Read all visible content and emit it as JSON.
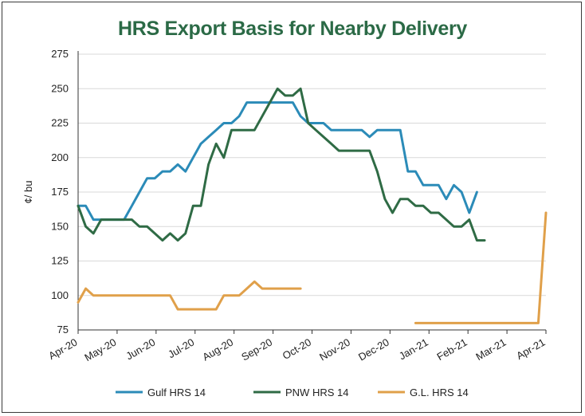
{
  "chart_data": {
    "type": "line",
    "title": "HRS Export Basis for Nearby Delivery",
    "ylabel": "¢/ bu",
    "xlabel": "",
    "ylim": [
      75,
      275
    ],
    "yticks": [
      75,
      100,
      125,
      150,
      175,
      200,
      225,
      250,
      275
    ],
    "xticks": [
      "Apr-20",
      "May-20",
      "Jun-20",
      "Jul-20",
      "Aug-20",
      "Sep-20",
      "Oct-20",
      "Nov-20",
      "Dec-20",
      "Jan-21",
      "Feb-21",
      "Mar-21",
      "Apr-21"
    ],
    "grid": "horizontal",
    "legend": "bottom",
    "series": [
      {
        "name": "Gulf HRS 14",
        "color": "#2b8bb8",
        "points": [
          [
            0,
            165
          ],
          [
            0.25,
            165
          ],
          [
            0.5,
            155
          ],
          [
            0.75,
            155
          ],
          [
            1.0,
            155
          ],
          [
            1.25,
            155
          ],
          [
            1.5,
            155
          ],
          [
            1.75,
            165
          ],
          [
            2.0,
            175
          ],
          [
            2.25,
            185
          ],
          [
            2.5,
            185
          ],
          [
            2.75,
            190
          ],
          [
            3.0,
            190
          ],
          [
            3.25,
            195
          ],
          [
            3.5,
            190
          ],
          [
            3.75,
            200
          ],
          [
            4.0,
            210
          ],
          [
            4.25,
            215
          ],
          [
            4.5,
            220
          ],
          [
            4.75,
            225
          ],
          [
            5.0,
            225
          ],
          [
            5.25,
            230
          ],
          [
            5.5,
            240
          ],
          [
            5.75,
            240
          ],
          [
            6.0,
            240
          ],
          [
            6.25,
            240
          ],
          [
            6.5,
            240
          ],
          [
            6.75,
            240
          ],
          [
            7.0,
            240
          ],
          [
            7.25,
            230
          ],
          [
            7.5,
            225
          ],
          [
            7.75,
            225
          ],
          [
            8.0,
            225
          ],
          [
            8.25,
            220
          ],
          [
            8.5,
            220
          ],
          [
            8.75,
            220
          ],
          [
            9.0,
            220
          ],
          [
            9.25,
            220
          ],
          [
            9.5,
            215
          ],
          [
            9.75,
            220
          ],
          [
            10.0,
            220
          ],
          [
            10.25,
            220
          ],
          [
            10.5,
            220
          ],
          [
            10.75,
            190
          ],
          [
            11.0,
            190
          ],
          [
            11.25,
            180
          ],
          [
            11.5,
            180
          ],
          [
            11.75,
            180
          ],
          [
            12.0,
            170
          ],
          [
            12.25,
            180
          ],
          [
            12.5,
            175
          ],
          [
            12.75,
            160
          ],
          [
            13.0,
            175
          ]
        ]
      },
      {
        "name": "PNW HRS 14",
        "color": "#2f6b45",
        "points": [
          [
            0,
            165
          ],
          [
            0.25,
            150
          ],
          [
            0.5,
            145
          ],
          [
            0.75,
            155
          ],
          [
            1.0,
            155
          ],
          [
            1.25,
            155
          ],
          [
            1.5,
            155
          ],
          [
            1.75,
            155
          ],
          [
            2.0,
            150
          ],
          [
            2.25,
            150
          ],
          [
            2.5,
            145
          ],
          [
            2.75,
            140
          ],
          [
            3.0,
            145
          ],
          [
            3.25,
            140
          ],
          [
            3.5,
            145
          ],
          [
            3.75,
            165
          ],
          [
            4.0,
            165
          ],
          [
            4.25,
            195
          ],
          [
            4.5,
            210
          ],
          [
            4.75,
            200
          ],
          [
            5.0,
            220
          ],
          [
            5.25,
            220
          ],
          [
            5.5,
            220
          ],
          [
            5.75,
            220
          ],
          [
            6.0,
            230
          ],
          [
            6.25,
            240
          ],
          [
            6.5,
            250
          ],
          [
            6.75,
            245
          ],
          [
            7.0,
            245
          ],
          [
            7.25,
            250
          ],
          [
            7.5,
            225
          ],
          [
            7.75,
            220
          ],
          [
            8.0,
            215
          ],
          [
            8.25,
            210
          ],
          [
            8.5,
            205
          ],
          [
            8.75,
            205
          ],
          [
            9.0,
            205
          ],
          [
            9.25,
            205
          ],
          [
            9.5,
            205
          ],
          [
            9.75,
            190
          ],
          [
            10.0,
            170
          ],
          [
            10.25,
            160
          ],
          [
            10.5,
            170
          ],
          [
            10.75,
            170
          ],
          [
            11.0,
            165
          ],
          [
            11.25,
            165
          ],
          [
            11.5,
            160
          ],
          [
            11.75,
            160
          ],
          [
            12.0,
            155
          ],
          [
            12.25,
            150
          ],
          [
            12.5,
            150
          ],
          [
            12.75,
            155
          ],
          [
            13.0,
            140
          ],
          [
            13.25,
            140
          ]
        ]
      },
      {
        "name": "G.L. HRS 14",
        "color": "#e0a04a",
        "segments": [
          [
            [
              0,
              95
            ],
            [
              0.25,
              105
            ],
            [
              0.5,
              100
            ],
            [
              0.75,
              100
            ],
            [
              1.0,
              100
            ],
            [
              1.25,
              100
            ],
            [
              1.5,
              100
            ],
            [
              1.75,
              100
            ],
            [
              2.0,
              100
            ],
            [
              2.25,
              100
            ],
            [
              2.5,
              100
            ],
            [
              2.75,
              100
            ],
            [
              3.0,
              100
            ],
            [
              3.25,
              90
            ],
            [
              3.5,
              90
            ],
            [
              3.75,
              90
            ],
            [
              4.0,
              90
            ],
            [
              4.25,
              90
            ],
            [
              4.5,
              90
            ],
            [
              4.75,
              100
            ],
            [
              5.0,
              100
            ],
            [
              5.25,
              100
            ],
            [
              5.5,
              105
            ],
            [
              5.75,
              110
            ],
            [
              6.0,
              105
            ],
            [
              6.25,
              105
            ],
            [
              6.5,
              105
            ],
            [
              6.75,
              105
            ],
            [
              7.0,
              105
            ],
            [
              7.25,
              105
            ]
          ],
          [
            [
              11.0,
              80
            ],
            [
              11.25,
              80
            ],
            [
              11.5,
              80
            ],
            [
              11.75,
              80
            ],
            [
              12.0,
              80
            ],
            [
              12.25,
              80
            ],
            [
              12.5,
              80
            ],
            [
              12.75,
              80
            ],
            [
              13.0,
              80
            ],
            [
              13.25,
              80
            ],
            [
              13.5,
              80
            ],
            [
              13.75,
              80
            ],
            [
              14.0,
              80
            ],
            [
              14.25,
              80
            ],
            [
              14.5,
              80
            ],
            [
              15.0,
              80
            ],
            [
              15.25,
              160
            ]
          ]
        ]
      }
    ]
  }
}
